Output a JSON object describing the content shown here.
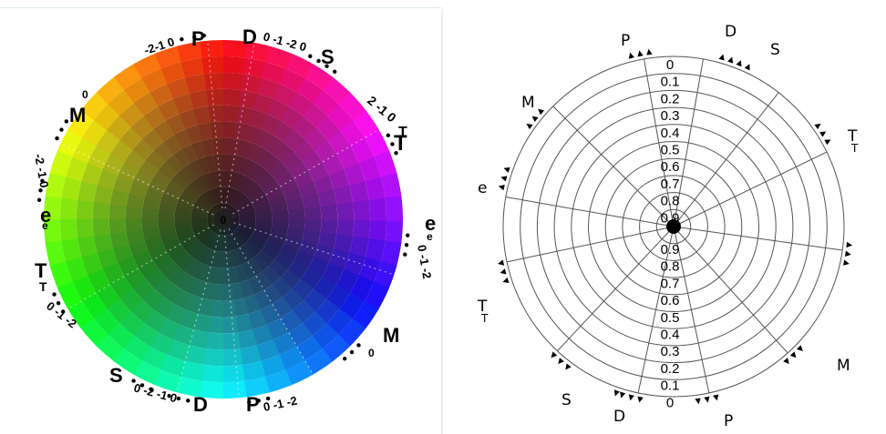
{
  "left_wheel": {
    "center_glyph": "0",
    "labels": [
      {
        "id": "P-top",
        "text": "P",
        "scale": "-2-1 0"
      },
      {
        "id": "D-top",
        "text": "D",
        "scale": "0 -1 -2 0"
      },
      {
        "id": "S-top",
        "text": "S",
        "scale": ""
      },
      {
        "id": "T-upper-right",
        "text": "T",
        "scale": "2 -1 0"
      },
      {
        "id": "e-right",
        "text": "e",
        "scale": "0 -1 -2"
      },
      {
        "id": "M-right",
        "text": "M",
        "scale": "0"
      },
      {
        "id": "P-bottom",
        "text": "P",
        "scale": "0 -1 -2"
      },
      {
        "id": "D-bottom",
        "text": "D",
        "scale": "0 -2 -1 0"
      },
      {
        "id": "S-bottom",
        "text": "S",
        "scale": ""
      },
      {
        "id": "T-left",
        "text": "T",
        "scale": "0 -1 -2"
      },
      {
        "id": "e-left",
        "text": "e",
        "scale": "-2 -1 0"
      },
      {
        "id": "M-left",
        "text": "M",
        "scale": "0"
      }
    ]
  },
  "right_wheel": {
    "center_glyph": "1",
    "ring_values_top": [
      "0",
      "0.1",
      "0.2",
      "0.3",
      "0.4",
      "0.5",
      "0.6",
      "0.7",
      "0.8",
      "0.9"
    ],
    "ring_values_bottom": [
      "0.9",
      "0.8",
      "0.7",
      "0.6",
      "0.5",
      "0.4",
      "0.3",
      "0.2",
      "0.1",
      "0"
    ],
    "labels": [
      {
        "id": "P-top",
        "text": "P"
      },
      {
        "id": "D-top",
        "text": "D"
      },
      {
        "id": "S-top",
        "text": "S"
      },
      {
        "id": "T-right",
        "text": "T"
      },
      {
        "id": "M-upper-left",
        "text": "M"
      },
      {
        "id": "e-left",
        "text": "e"
      },
      {
        "id": "T-left",
        "text": "T"
      },
      {
        "id": "M-lower-right",
        "text": "M"
      },
      {
        "id": "S-bottom",
        "text": "S"
      },
      {
        "id": "D-bottom",
        "text": "D"
      },
      {
        "id": "P-bottom",
        "text": "P"
      }
    ]
  }
}
